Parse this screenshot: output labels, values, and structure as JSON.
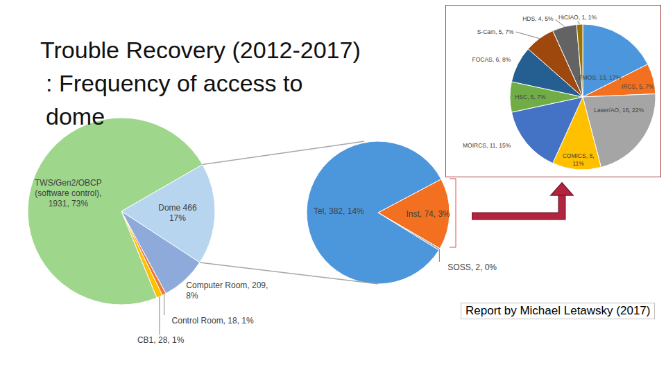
{
  "title": "Trouble Recovery (2012-2017)",
  "subtitle": ": Frequency of access to dome",
  "source": "Report by Michael Letawsky (2017)",
  "chart_data": [
    {
      "type": "pie",
      "categories": [
        "Dome 466 17%",
        "Computer Room, 209, 8%",
        "Control Room, 18, 1%",
        "CB1, 28, 1%",
        "TWS/Gen2/OBCP (software control), 1931, 73%"
      ],
      "values": [
        466,
        209,
        18,
        28,
        1931
      ],
      "colors": [
        "#b7d5ef",
        "#8eaadb",
        "#ed7d31",
        "#ffc000",
        "#9ed68b"
      ]
    },
    {
      "type": "pie",
      "categories": [
        "Inst, 74, 3%",
        "SOSS, 2, 0%",
        "Tel, 382, 14%"
      ],
      "values": [
        74,
        2,
        382
      ],
      "colors": [
        "#f37021",
        "#a5a5a5",
        "#4c97dc"
      ]
    },
    {
      "type": "pie",
      "categories": [
        "FMOS, 13, 17%",
        "IRCS, 5, 7%",
        "Laser/AO, 16, 22%",
        "COMICS, 8, 11%",
        "MOIRCS, 11, 15%",
        "HSC, 5, 7%",
        "FOCAS, 6, 8%",
        "S-Cam, 5, 7%",
        "HDS, 4, 5%",
        "HiCIAO, 1, 1%"
      ],
      "values": [
        13,
        5,
        16,
        8,
        11,
        5,
        6,
        5,
        4,
        1
      ],
      "colors": [
        "#4b96dc",
        "#f37021",
        "#a5a5a5",
        "#ffc000",
        "#4472c4",
        "#70ad47",
        "#255e91",
        "#9e480e",
        "#636363",
        "#997300"
      ]
    }
  ]
}
